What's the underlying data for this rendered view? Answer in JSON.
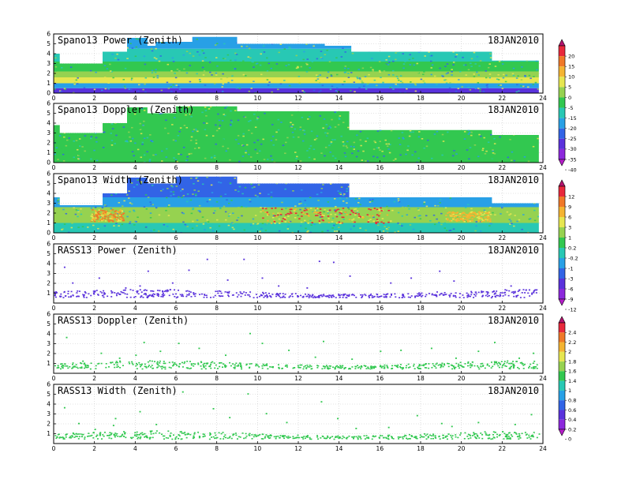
{
  "chart_data": [
    {
      "type": "heatmap",
      "title": "Spano13 Power (Zenith)",
      "date_label": "18JAN2010",
      "x_ticks": [
        "0",
        "2",
        "4",
        "6",
        "8",
        "10",
        "12",
        "14",
        "16",
        "18",
        "20",
        "22",
        "24"
      ],
      "y_ticks": [
        "0",
        "1",
        "2",
        "3",
        "4",
        "5",
        "6"
      ],
      "xlim": [
        0,
        24
      ],
      "ylim": [
        0,
        6
      ],
      "colorbar": {
        "ticks": [
          "20",
          "15",
          "10",
          "5",
          "0",
          "-5",
          "-15",
          "-20",
          "-25",
          "-30",
          "-35",
          "-40"
        ],
        "colors": [
          "#b4146e",
          "#e8283c",
          "#f07828",
          "#f4b432",
          "#e6e650",
          "#96d250",
          "#32c850",
          "#28c8b4",
          "#28a0e6",
          "#3264e6",
          "#5a32dc",
          "#8c28dc",
          "#b41ec8"
        ]
      },
      "coverage": [
        [
          0,
          0.3,
          0,
          4.0
        ],
        [
          0.3,
          2.4,
          0,
          3.0
        ],
        [
          2.4,
          3.6,
          0,
          4.2
        ],
        [
          3.6,
          4.6,
          0,
          5.6
        ],
        [
          4.6,
          5.0,
          0,
          4.8
        ],
        [
          5.0,
          6.8,
          0,
          5.2
        ],
        [
          6.8,
          9.0,
          0,
          5.7
        ],
        [
          9.0,
          13.3,
          0,
          5.0
        ],
        [
          13.3,
          14.6,
          0,
          4.8
        ],
        [
          14.6,
          21.5,
          0,
          4.2
        ],
        [
          21.5,
          23.8,
          0,
          3.3
        ]
      ],
      "bands": [
        {
          "y": [
            0.0,
            0.5
          ],
          "color": "#5a32dc"
        },
        {
          "y": [
            0.5,
            1.0
          ],
          "color": "#28a0e6"
        },
        {
          "y": [
            1.0,
            1.6
          ],
          "color": "#e6e650"
        },
        {
          "y": [
            1.6,
            2.2
          ],
          "color": "#96d250"
        },
        {
          "y": [
            2.2,
            3.2
          ],
          "color": "#32c850"
        },
        {
          "y": [
            3.2,
            4.5
          ],
          "color": "#28c8b4"
        },
        {
          "y": [
            4.5,
            6.0
          ],
          "color": "#28a0e6"
        }
      ],
      "layout_key": "top"
    },
    {
      "type": "heatmap",
      "title": "Spano13 Doppler (Zenith)",
      "date_label": "18JAN2010",
      "x_ticks": [
        "0",
        "2",
        "4",
        "6",
        "8",
        "10",
        "12",
        "14",
        "16",
        "18",
        "20",
        "22",
        "24"
      ],
      "y_ticks": [
        "0",
        "1",
        "2",
        "3",
        "4",
        "5",
        "6"
      ],
      "xlim": [
        0,
        24
      ],
      "ylim": [
        0,
        6
      ],
      "coverage": [
        [
          0,
          0.3,
          0,
          3.8
        ],
        [
          0.3,
          2.4,
          0,
          3.0
        ],
        [
          2.4,
          3.6,
          0,
          4.0
        ],
        [
          3.6,
          4.6,
          0,
          5.6
        ],
        [
          4.6,
          6.0,
          0,
          5.0
        ],
        [
          6.0,
          9.0,
          0,
          5.7
        ],
        [
          9.0,
          14.5,
          0,
          5.2
        ],
        [
          14.5,
          21.5,
          0,
          3.3
        ],
        [
          21.5,
          23.8,
          0,
          2.8
        ]
      ],
      "bands": [
        {
          "y": [
            0.0,
            6.0
          ],
          "color": "#32c850"
        }
      ],
      "layout_key": "top"
    },
    {
      "type": "heatmap",
      "title": "Spano13 Width (Zenith)",
      "date_label": "18JAN2010",
      "x_ticks": [
        "0",
        "2",
        "4",
        "6",
        "8",
        "10",
        "12",
        "14",
        "16",
        "18",
        "20",
        "22",
        "24"
      ],
      "y_ticks": [
        "0",
        "1",
        "2",
        "3",
        "4",
        "5",
        "6"
      ],
      "xlim": [
        0,
        24
      ],
      "ylim": [
        0,
        6
      ],
      "colorbar": {
        "ticks": [
          "12",
          "9",
          "6",
          "3",
          "1",
          "0.2",
          "-0.2",
          "-1",
          "-3",
          "-6",
          "-9",
          "-12"
        ],
        "colors": [
          "#b4146e",
          "#e8283c",
          "#f07828",
          "#f4b432",
          "#e6e650",
          "#96d250",
          "#32c850",
          "#28c8b4",
          "#28a0e6",
          "#3264e6",
          "#5a32dc",
          "#8c28dc",
          "#b41ec8"
        ]
      },
      "coverage": [
        [
          0,
          0.3,
          0,
          3.6
        ],
        [
          0.3,
          2.4,
          0,
          2.8
        ],
        [
          2.4,
          3.6,
          0,
          4.0
        ],
        [
          3.6,
          4.6,
          0,
          5.6
        ],
        [
          4.6,
          6.0,
          0,
          5.0
        ],
        [
          6.0,
          9.0,
          0,
          5.7
        ],
        [
          9.0,
          14.5,
          0,
          5.0
        ],
        [
          14.5,
          21.5,
          0,
          3.6
        ],
        [
          21.5,
          23.8,
          0,
          3.0
        ]
      ],
      "bands": [
        {
          "y": [
            0.0,
            1.0
          ],
          "color": "#28c8b4"
        },
        {
          "y": [
            1.0,
            2.6
          ],
          "color": "#96d250"
        },
        {
          "y": [
            2.6,
            3.6
          ],
          "color": "#28a0e6"
        },
        {
          "y": [
            3.6,
            6.0
          ],
          "color": "#3264e6"
        }
      ],
      "hotspots": [
        {
          "x": [
            1.8,
            3.4
          ],
          "y": [
            1.2,
            2.4
          ],
          "color": "#f07828"
        },
        {
          "x": [
            10.2,
            16.6
          ],
          "y": [
            1.0,
            2.6
          ],
          "color": "#e8283c"
        },
        {
          "x": [
            19.2,
            21.4
          ],
          "y": [
            1.2,
            2.2
          ],
          "color": "#f4b432"
        }
      ],
      "layout_key": "top"
    },
    {
      "type": "scatter",
      "title": "RASS13 Power (Zenith)",
      "date_label": "18JAN2010",
      "x_ticks": [
        "0",
        "2",
        "4",
        "6",
        "8",
        "10",
        "12",
        "14",
        "16",
        "18",
        "20",
        "22",
        "24"
      ],
      "y_ticks": [
        "1",
        "2",
        "3",
        "4",
        "5",
        "6"
      ],
      "xlim": [
        0,
        24
      ],
      "ylim": [
        0,
        6
      ],
      "point_color": "#5a32dc",
      "band_y": [
        0.6,
        1.2
      ],
      "sparse_points": [
        [
          0.9,
          2.1
        ],
        [
          1.5,
          1.2
        ],
        [
          2.2,
          2.6
        ],
        [
          3.5,
          1.6
        ],
        [
          4.2,
          1.8
        ],
        [
          4.6,
          3.3
        ],
        [
          5.8,
          2.1
        ],
        [
          6.6,
          3.4
        ],
        [
          7.5,
          4.5
        ],
        [
          8.5,
          2.4
        ],
        [
          9.3,
          4.5
        ],
        [
          10.2,
          2.6
        ],
        [
          12.4,
          1.6
        ],
        [
          13.0,
          4.3
        ],
        [
          13.7,
          4.2
        ],
        [
          14.5,
          2.8
        ],
        [
          16.5,
          2.1
        ],
        [
          17.5,
          2.6
        ],
        [
          18.9,
          3.3
        ],
        [
          19.6,
          2.3
        ],
        [
          21.5,
          1.2
        ],
        [
          22.4,
          1.8
        ],
        [
          23.3,
          1.4
        ],
        [
          0.5,
          3.7
        ],
        [
          11.0,
          1.8
        ]
      ],
      "layout_key": "bottom"
    },
    {
      "type": "scatter",
      "title": "RASS13 Doppler (Zenith)",
      "date_label": "18JAN2010",
      "x_ticks": [
        "0",
        "2",
        "4",
        "6",
        "8",
        "10",
        "12",
        "14",
        "16",
        "18",
        "20",
        "22",
        "24"
      ],
      "y_ticks": [
        "1",
        "2",
        "3",
        "4",
        "5",
        "6"
      ],
      "xlim": [
        0,
        24
      ],
      "ylim": [
        0,
        6
      ],
      "colorbar": {
        "ticks": [
          "2.4",
          "2.2",
          "2",
          "1.8",
          "1.6",
          "1.4",
          "1",
          "0.8",
          "0.6",
          "0.4",
          "0.2",
          "0"
        ],
        "colors": [
          "#b4146e",
          "#e8283c",
          "#f07828",
          "#f4b432",
          "#e6e650",
          "#96d250",
          "#32c850",
          "#28c8b4",
          "#28a0e6",
          "#3264e6",
          "#5a32dc",
          "#8c28dc",
          "#b41ec8"
        ]
      },
      "point_color": "#32c850",
      "band_y": [
        0.5,
        1.1
      ],
      "sparse_points": [
        [
          0.6,
          3.7
        ],
        [
          1.4,
          1.3
        ],
        [
          2.3,
          2.1
        ],
        [
          3.2,
          1.6
        ],
        [
          4.4,
          3.2
        ],
        [
          5.2,
          2.3
        ],
        [
          6.1,
          3.1
        ],
        [
          7.1,
          2.6
        ],
        [
          8.4,
          1.9
        ],
        [
          9.6,
          4.1
        ],
        [
          10.2,
          3.1
        ],
        [
          11.5,
          2.4
        ],
        [
          12.8,
          1.7
        ],
        [
          13.2,
          3.3
        ],
        [
          14.6,
          1.5
        ],
        [
          16.0,
          2.3
        ],
        [
          17.0,
          2.4
        ],
        [
          19.7,
          1.6
        ],
        [
          20.8,
          2.3
        ],
        [
          21.6,
          3.2
        ],
        [
          22.8,
          1.6
        ],
        [
          23.5,
          2.1
        ],
        [
          4.0,
          1.9
        ],
        [
          18.5,
          2.6
        ]
      ],
      "layout_key": "bottom"
    },
    {
      "type": "scatter",
      "title": "RASS13 Width (Zenith)",
      "date_label": "18JAN2010",
      "x_ticks": [
        "0",
        "2",
        "4",
        "6",
        "8",
        "10",
        "12",
        "14",
        "16",
        "18",
        "20",
        "22",
        "24"
      ],
      "y_ticks": [
        "1",
        "2",
        "3",
        "4",
        "5",
        "6"
      ],
      "xlim": [
        0,
        24
      ],
      "ylim": [
        0,
        6
      ],
      "point_color": "#32c850",
      "band_y": [
        0.5,
        1.1
      ],
      "sparse_points": [
        [
          0.5,
          3.7
        ],
        [
          1.2,
          2.1
        ],
        [
          2.0,
          1.5
        ],
        [
          3.0,
          2.6
        ],
        [
          4.2,
          3.3
        ],
        [
          5.0,
          2.0
        ],
        [
          6.3,
          5.3
        ],
        [
          7.8,
          3.6
        ],
        [
          8.6,
          2.7
        ],
        [
          9.5,
          5.1
        ],
        [
          10.4,
          3.1
        ],
        [
          11.4,
          2.2
        ],
        [
          13.1,
          4.3
        ],
        [
          13.9,
          2.6
        ],
        [
          14.8,
          1.6
        ],
        [
          16.4,
          1.7
        ],
        [
          17.8,
          2.9
        ],
        [
          19.5,
          1.8
        ],
        [
          20.8,
          2.2
        ],
        [
          22.6,
          2.0
        ],
        [
          23.4,
          3.0
        ],
        [
          2.9,
          1.9
        ],
        [
          19.0,
          2.1
        ]
      ],
      "layout_key": "bottom"
    }
  ]
}
